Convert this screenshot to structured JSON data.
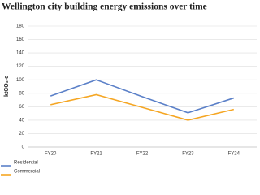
{
  "chart_data": {
    "type": "line",
    "title": "Wellington city building energy emissions over time",
    "y_label": "ktCO₂-e",
    "categories": [
      "FY20",
      "FY21",
      "FY22",
      "FY23",
      "FY24"
    ],
    "series": [
      {
        "name": "Residential",
        "color": "#5b80c8",
        "values": [
          76,
          100,
          75,
          51,
          73
        ]
      },
      {
        "name": "Commercial",
        "color": "#f5a623",
        "values": [
          63,
          78,
          59,
          40,
          56
        ]
      }
    ],
    "ylim": [
      0,
      180
    ],
    "yticks": [
      0,
      20,
      40,
      60,
      80,
      100,
      120,
      140,
      160,
      180
    ],
    "grid": true,
    "legend": "bottom-left"
  }
}
